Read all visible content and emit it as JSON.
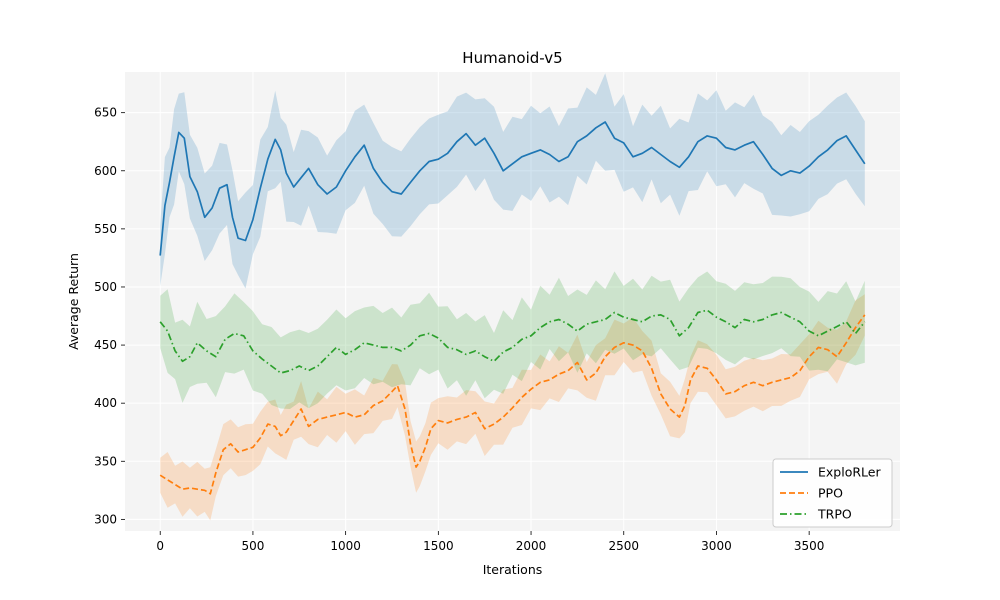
{
  "chart_data": {
    "type": "line",
    "title": "Humanoid-v5",
    "xlabel": "Iterations",
    "ylabel": "Average Return",
    "xlim": [
      -190,
      3990
    ],
    "ylim": [
      290,
      685
    ],
    "xticks": [
      0,
      500,
      1000,
      1500,
      2000,
      2500,
      3000,
      3500
    ],
    "yticks": [
      300,
      350,
      400,
      450,
      500,
      550,
      600,
      650
    ],
    "grid": true,
    "legend_position": "bottom-right",
    "series": [
      {
        "name": "ExploRLer",
        "color": "#1f77b4",
        "line_style": "solid",
        "x": [
          0,
          25,
          50,
          75,
          100,
          130,
          160,
          200,
          240,
          280,
          320,
          360,
          390,
          420,
          460,
          500,
          540,
          580,
          620,
          650,
          680,
          720,
          760,
          800,
          850,
          900,
          950,
          1000,
          1050,
          1100,
          1150,
          1200,
          1250,
          1300,
          1350,
          1400,
          1450,
          1500,
          1550,
          1600,
          1650,
          1700,
          1750,
          1800,
          1850,
          1900,
          1950,
          2000,
          2050,
          2100,
          2150,
          2200,
          2250,
          2300,
          2350,
          2400,
          2450,
          2500,
          2550,
          2600,
          2650,
          2700,
          2750,
          2800,
          2850,
          2900,
          2950,
          3000,
          3050,
          3100,
          3150,
          3200,
          3250,
          3300,
          3350,
          3400,
          3450,
          3500,
          3550,
          3600,
          3650,
          3700,
          3750,
          3800
        ],
        "y": [
          527,
          570,
          590,
          612,
          633,
          628,
          595,
          582,
          560,
          568,
          585,
          588,
          560,
          542,
          540,
          558,
          585,
          610,
          627,
          618,
          598,
          586,
          594,
          602,
          588,
          580,
          586,
          600,
          612,
          622,
          602,
          590,
          582,
          580,
          590,
          600,
          608,
          610,
          615,
          625,
          632,
          622,
          628,
          615,
          600,
          606,
          612,
          615,
          618,
          614,
          608,
          612,
          625,
          630,
          637,
          642,
          628,
          624,
          612,
          615,
          620,
          614,
          608,
          603,
          612,
          625,
          630,
          628,
          620,
          618,
          622,
          625,
          614,
          602,
          596,
          600,
          598,
          604,
          612,
          618,
          626,
          630,
          618,
          606
        ],
        "band_width": 35
      },
      {
        "name": "PPO",
        "color": "#ff7f0e",
        "line_style": "dashed",
        "x": [
          0,
          40,
          80,
          120,
          160,
          200,
          240,
          270,
          300,
          340,
          380,
          420,
          460,
          500,
          540,
          580,
          620,
          650,
          680,
          720,
          760,
          800,
          850,
          900,
          950,
          1000,
          1050,
          1100,
          1150,
          1200,
          1250,
          1280,
          1320,
          1350,
          1380,
          1400,
          1430,
          1460,
          1500,
          1550,
          1600,
          1650,
          1700,
          1750,
          1800,
          1850,
          1900,
          1950,
          2000,
          2050,
          2100,
          2150,
          2200,
          2250,
          2300,
          2350,
          2400,
          2450,
          2500,
          2550,
          2600,
          2650,
          2700,
          2750,
          2800,
          2830,
          2860,
          2900,
          2950,
          3000,
          3050,
          3100,
          3150,
          3200,
          3250,
          3300,
          3350,
          3400,
          3450,
          3500,
          3550,
          3600,
          3650,
          3700,
          3750,
          3800
        ],
        "y": [
          338,
          334,
          330,
          326,
          327,
          326,
          325,
          322,
          340,
          360,
          365,
          358,
          360,
          362,
          370,
          382,
          380,
          372,
          375,
          385,
          395,
          380,
          386,
          388,
          390,
          392,
          388,
          390,
          398,
          402,
          410,
          415,
          395,
          365,
          345,
          350,
          362,
          378,
          385,
          383,
          386,
          388,
          392,
          378,
          382,
          388,
          396,
          405,
          412,
          418,
          420,
          425,
          428,
          435,
          420,
          426,
          440,
          448,
          452,
          450,
          445,
          430,
          408,
          395,
          388,
          398,
          420,
          432,
          430,
          420,
          408,
          410,
          415,
          418,
          415,
          418,
          420,
          422,
          428,
          440,
          448,
          446,
          440,
          452,
          465,
          476
        ],
        "band_width": 20
      },
      {
        "name": "TRPO",
        "color": "#2ca02c",
        "line_style": "dashdot",
        "x": [
          0,
          40,
          80,
          120,
          160,
          200,
          250,
          300,
          350,
          400,
          450,
          500,
          550,
          600,
          650,
          700,
          750,
          800,
          850,
          900,
          950,
          1000,
          1050,
          1100,
          1150,
          1200,
          1250,
          1300,
          1350,
          1400,
          1450,
          1500,
          1550,
          1600,
          1650,
          1700,
          1750,
          1800,
          1850,
          1900,
          1950,
          2000,
          2050,
          2100,
          2150,
          2200,
          2250,
          2300,
          2350,
          2400,
          2450,
          2500,
          2550,
          2600,
          2650,
          2700,
          2750,
          2800,
          2850,
          2900,
          2950,
          3000,
          3050,
          3100,
          3150,
          3200,
          3250,
          3300,
          3350,
          3400,
          3450,
          3500,
          3550,
          3600,
          3650,
          3700,
          3750,
          3800
        ],
        "y": [
          470,
          462,
          445,
          436,
          440,
          452,
          445,
          440,
          455,
          460,
          458,
          445,
          438,
          432,
          426,
          428,
          432,
          428,
          432,
          440,
          448,
          442,
          446,
          452,
          450,
          448,
          448,
          445,
          450,
          458,
          460,
          456,
          448,
          446,
          442,
          445,
          440,
          436,
          444,
          448,
          455,
          458,
          465,
          470,
          472,
          468,
          462,
          468,
          470,
          472,
          478,
          474,
          472,
          470,
          475,
          476,
          472,
          458,
          465,
          478,
          480,
          474,
          470,
          465,
          472,
          470,
          472,
          476,
          478,
          474,
          470,
          462,
          458,
          462,
          466,
          470,
          460,
          470
        ],
        "band_width": 30
      }
    ]
  }
}
